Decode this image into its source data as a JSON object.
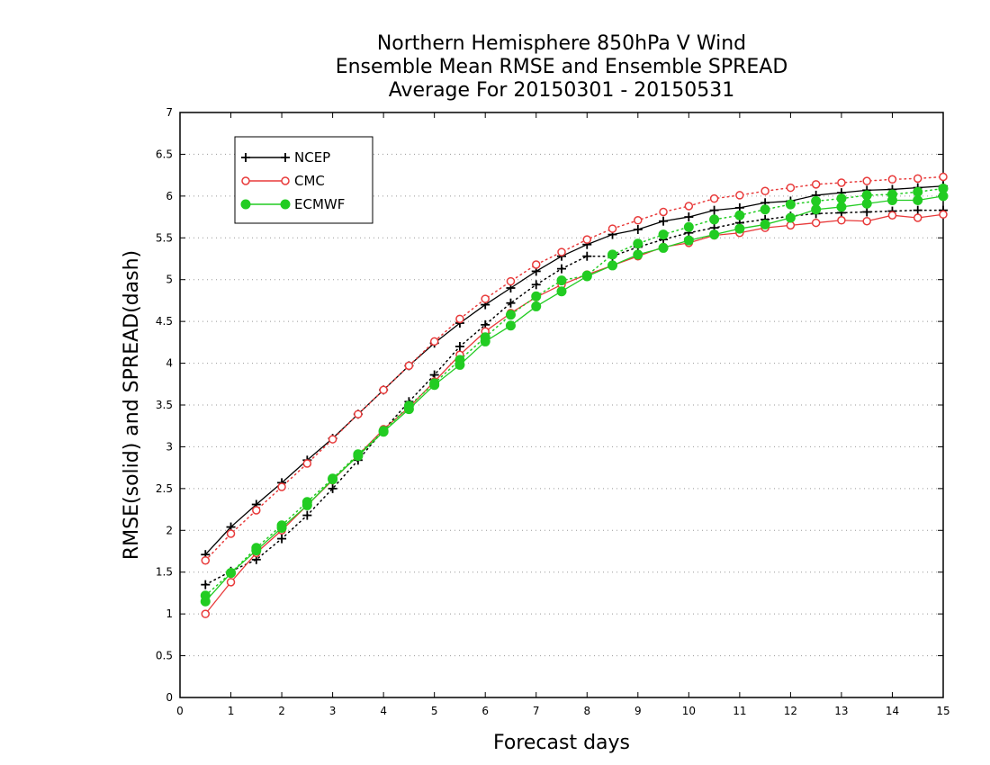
{
  "chart_data": {
    "type": "line",
    "title_lines": [
      "Northern Hemisphere 850hPa V Wind",
      "Ensemble Mean RMSE and Ensemble SPREAD",
      "Average For 20150301 - 20150531"
    ],
    "xlabel": "Forecast days",
    "ylabel": "RMSE(solid) and SPREAD(dash)",
    "xlim": [
      0,
      15
    ],
    "ylim": [
      0,
      7
    ],
    "x_ticks": [
      "0",
      "1",
      "2",
      "3",
      "4",
      "5",
      "6",
      "7",
      "8",
      "9",
      "10",
      "11",
      "12",
      "13",
      "14",
      "15"
    ],
    "y_ticks": [
      "0",
      "0.5",
      "1",
      "1.5",
      "2",
      "2.5",
      "3",
      "3.5",
      "4",
      "4.5",
      "5",
      "5.5",
      "6",
      "6.5",
      "7"
    ],
    "grid": "horizontal dotted",
    "legend_position": "top-left",
    "x": [
      0.5,
      1,
      1.5,
      2,
      2.5,
      3,
      3.5,
      4,
      4.5,
      5,
      5.5,
      6,
      6.5,
      7,
      7.5,
      8,
      8.5,
      9,
      9.5,
      10,
      10.5,
      11,
      11.5,
      12,
      12.5,
      13,
      13.5,
      14,
      14.5,
      15
    ],
    "series": [
      {
        "name": "NCEP",
        "color": "#000000",
        "marker": "plus",
        "rmse": [
          1.71,
          2.04,
          2.31,
          2.57,
          2.84,
          3.1,
          3.39,
          3.68,
          3.97,
          4.24,
          4.48,
          4.7,
          4.9,
          5.1,
          5.28,
          5.42,
          5.54,
          5.6,
          5.7,
          5.75,
          5.83,
          5.86,
          5.92,
          5.94,
          6.01,
          6.04,
          6.07,
          6.08,
          6.1,
          6.12
        ],
        "spread": [
          1.35,
          1.51,
          1.65,
          1.9,
          2.18,
          2.5,
          2.84,
          3.2,
          3.54,
          3.86,
          4.2,
          4.46,
          4.72,
          4.94,
          5.13,
          5.28,
          5.28,
          5.39,
          5.48,
          5.56,
          5.62,
          5.68,
          5.72,
          5.76,
          5.79,
          5.8,
          5.81,
          5.82,
          5.83,
          5.83
        ]
      },
      {
        "name": "CMC",
        "color": "#e83a3a",
        "marker": "open-circle",
        "rmse": [
          1.0,
          1.38,
          1.73,
          2.0,
          2.3,
          2.6,
          2.9,
          3.21,
          3.47,
          3.78,
          4.1,
          4.38,
          4.6,
          4.79,
          4.94,
          5.06,
          5.17,
          5.28,
          5.39,
          5.44,
          5.53,
          5.56,
          5.62,
          5.65,
          5.68,
          5.71,
          5.7,
          5.77,
          5.74,
          5.78
        ],
        "spread": [
          1.64,
          1.96,
          2.24,
          2.52,
          2.8,
          3.09,
          3.39,
          3.68,
          3.97,
          4.26,
          4.53,
          4.77,
          4.98,
          5.18,
          5.33,
          5.48,
          5.61,
          5.71,
          5.81,
          5.88,
          5.97,
          6.01,
          6.06,
          6.1,
          6.14,
          6.16,
          6.18,
          6.2,
          6.21,
          6.23
        ]
      },
      {
        "name": "ECMWF",
        "color": "#22cc22",
        "marker": "filled-circle",
        "rmse": [
          1.15,
          1.49,
          1.76,
          2.03,
          2.3,
          2.61,
          2.89,
          3.18,
          3.45,
          3.74,
          3.98,
          4.26,
          4.45,
          4.68,
          4.86,
          5.04,
          5.17,
          5.3,
          5.38,
          5.47,
          5.54,
          5.61,
          5.66,
          5.74,
          5.84,
          5.87,
          5.91,
          5.95,
          5.95,
          6.0
        ],
        "spread": [
          1.22,
          1.49,
          1.79,
          2.06,
          2.34,
          2.62,
          2.91,
          3.19,
          3.49,
          3.76,
          4.04,
          4.31,
          4.58,
          4.8,
          4.99,
          5.05,
          5.3,
          5.43,
          5.54,
          5.63,
          5.72,
          5.77,
          5.84,
          5.9,
          5.94,
          5.97,
          6.01,
          6.02,
          6.05,
          6.09
        ]
      }
    ]
  }
}
